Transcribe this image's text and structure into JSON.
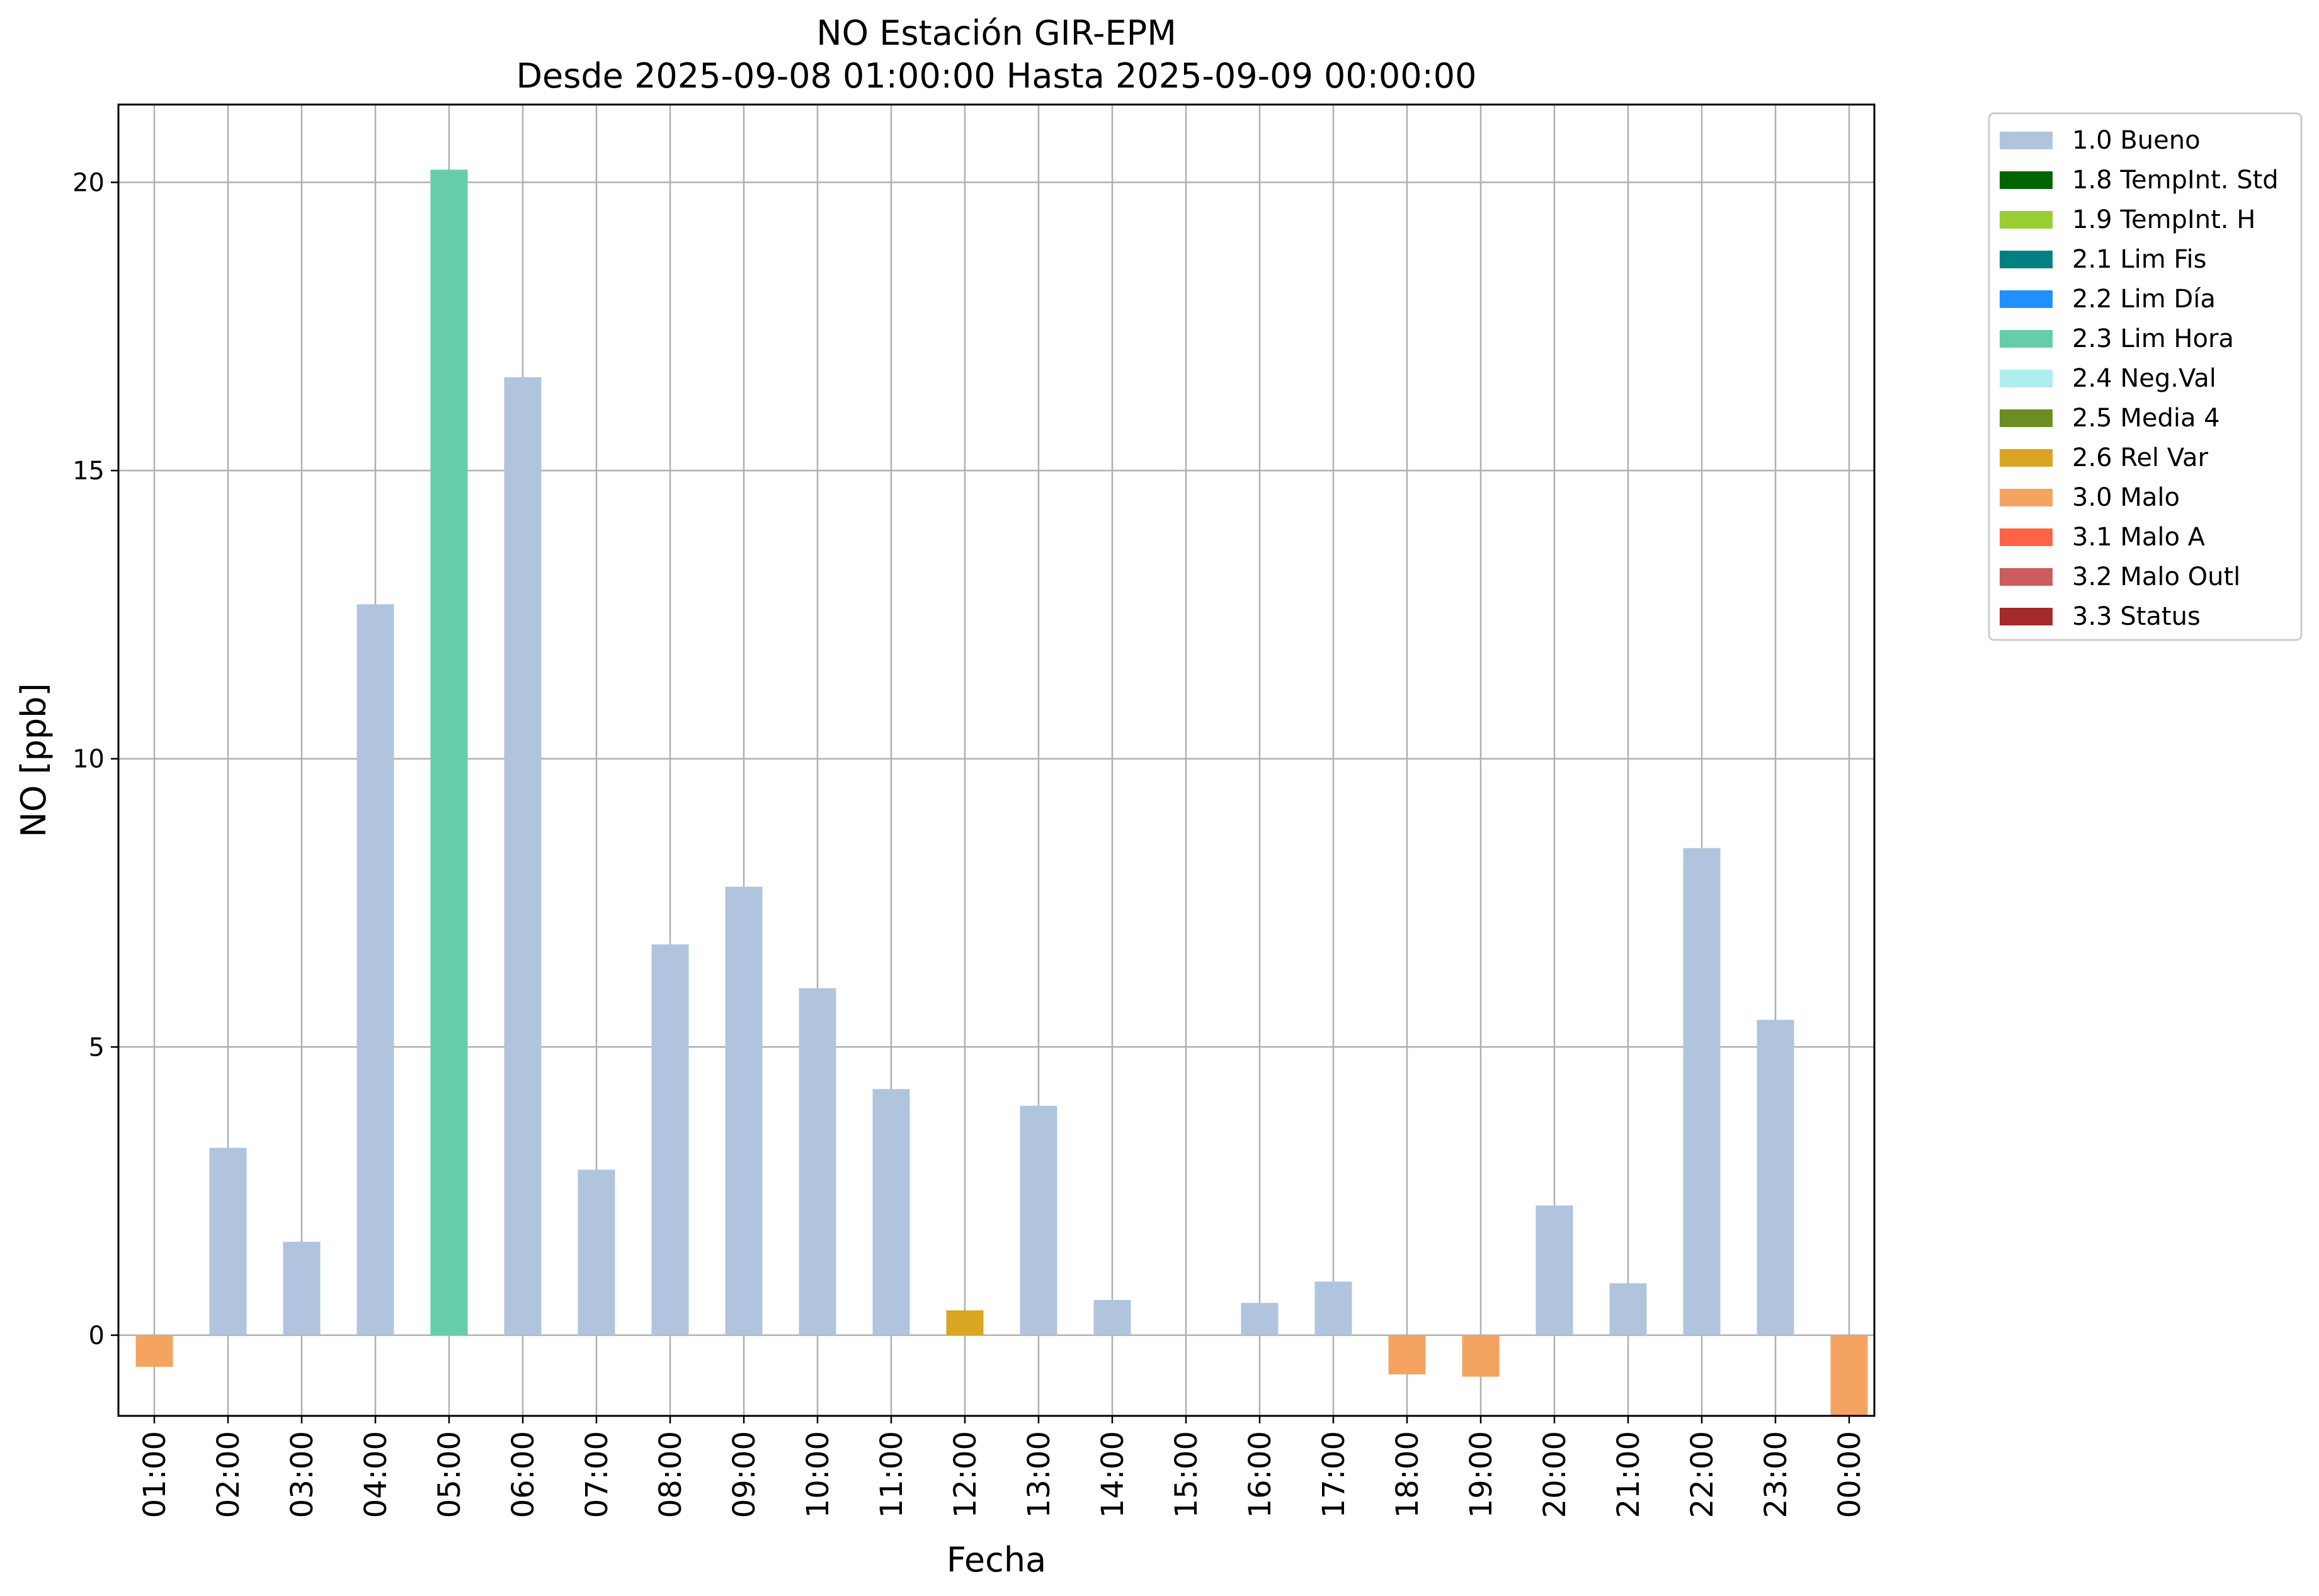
{
  "chart_data": {
    "type": "bar",
    "title": "NO Estación GIR-EPM",
    "subtitle": "Desde 2025-09-08 01:00:00 Hasta 2025-09-09 00:00:00",
    "xlabel": "Fecha",
    "ylabel": "NO [ppb]",
    "ylim": [
      -1.4,
      21.35
    ],
    "yticks": [
      0,
      5,
      10,
      15,
      20
    ],
    "ytick_labels": [
      "0",
      "5",
      "10",
      "15",
      "20"
    ],
    "grid": true,
    "legend_placement": "outside-top-right",
    "categories": [
      "01:00",
      "02:00",
      "03:00",
      "04:00",
      "05:00",
      "06:00",
      "07:00",
      "08:00",
      "09:00",
      "10:00",
      "11:00",
      "12:00",
      "13:00",
      "14:00",
      "15:00",
      "16:00",
      "17:00",
      "18:00",
      "19:00",
      "20:00",
      "21:00",
      "22:00",
      "23:00",
      "00:00"
    ],
    "values": [
      -0.55,
      3.25,
      1.62,
      12.68,
      20.22,
      16.62,
      2.87,
      6.78,
      7.78,
      6.02,
      4.27,
      0.43,
      3.98,
      0.61,
      null,
      0.56,
      0.93,
      -0.68,
      -0.72,
      2.25,
      0.9,
      8.45,
      5.47,
      -1.4
    ],
    "flags": [
      "3.0 Malo",
      "1.0 Bueno",
      "1.0 Bueno",
      "1.0 Bueno",
      "2.3 Lim Hora",
      "1.0 Bueno",
      "1.0 Bueno",
      "1.0 Bueno",
      "1.0 Bueno",
      "1.0 Bueno",
      "1.0 Bueno",
      "2.6 Rel Var",
      "1.0 Bueno",
      "1.0 Bueno",
      null,
      "1.0 Bueno",
      "1.0 Bueno",
      "3.0 Malo",
      "3.0 Malo",
      "1.0 Bueno",
      "1.0 Bueno",
      "1.0 Bueno",
      "1.0 Bueno",
      "3.0 Malo"
    ],
    "legend": [
      {
        "label": "1.0 Bueno",
        "color": "#b0c4de"
      },
      {
        "label": "1.8 TempInt. Std",
        "color": "#006400"
      },
      {
        "label": "1.9 TempInt. H",
        "color": "#9acd32"
      },
      {
        "label": "2.1 Lim Fis",
        "color": "#008080"
      },
      {
        "label": "2.2 Lim Día",
        "color": "#1e90ff"
      },
      {
        "label": "2.3 Lim Hora",
        "color": "#66cdaa"
      },
      {
        "label": "2.4 Neg.Val",
        "color": "#afeeee"
      },
      {
        "label": "2.5 Media 4",
        "color": "#6b8e23"
      },
      {
        "label": "2.6 Rel Var",
        "color": "#daa520"
      },
      {
        "label": "3.0 Malo",
        "color": "#f4a460"
      },
      {
        "label": "3.1 Malo A",
        "color": "#ff6347"
      },
      {
        "label": "3.2 Malo Outl",
        "color": "#cd5c5c"
      },
      {
        "label": "3.3 Status",
        "color": "#a52a2a"
      }
    ],
    "colors": {
      "grid": "#b0b0b0",
      "axes": "#000000"
    }
  }
}
